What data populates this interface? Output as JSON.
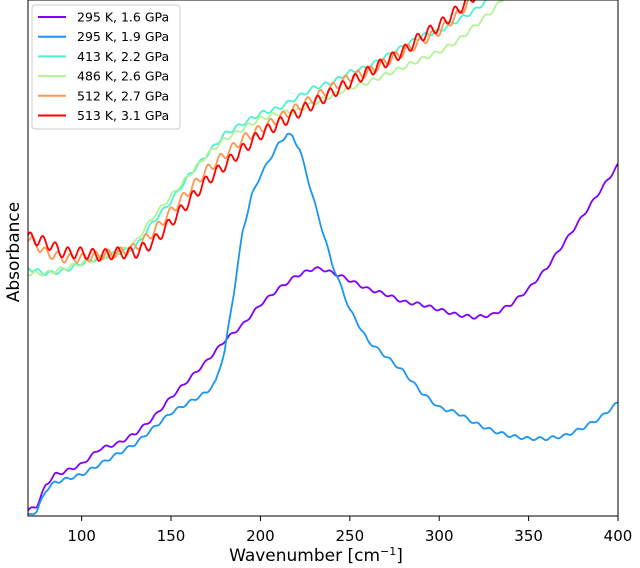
{
  "chart_data": {
    "type": "line",
    "title": "",
    "xlabel": "Wavenumber [cm",
    "xlabel_sup": "−1",
    "xlabel_end": "]",
    "ylabel": "Absorbance",
    "xlim": [
      70,
      400
    ],
    "ylim": [
      0,
      1
    ],
    "y_tick_labels": false,
    "x_ticks": [
      100,
      150,
      200,
      250,
      300,
      350,
      400
    ],
    "grid": false,
    "legend_position": "top-left",
    "series": [
      {
        "name": "295 K, 1.6 GPa",
        "color": "#8000ff",
        "wiggle": 0.003,
        "points": [
          [
            70,
            0.01
          ],
          [
            75,
            0.02
          ],
          [
            80,
            0.06
          ],
          [
            85,
            0.08
          ],
          [
            90,
            0.085
          ],
          [
            100,
            0.1
          ],
          [
            110,
            0.13
          ],
          [
            120,
            0.14
          ],
          [
            130,
            0.16
          ],
          [
            140,
            0.19
          ],
          [
            150,
            0.23
          ],
          [
            160,
            0.265
          ],
          [
            170,
            0.3
          ],
          [
            180,
            0.34
          ],
          [
            190,
            0.37
          ],
          [
            200,
            0.41
          ],
          [
            210,
            0.44
          ],
          [
            220,
            0.465
          ],
          [
            230,
            0.48
          ],
          [
            235,
            0.478
          ],
          [
            245,
            0.465
          ],
          [
            260,
            0.44
          ],
          [
            270,
            0.43
          ],
          [
            280,
            0.415
          ],
          [
            290,
            0.41
          ],
          [
            300,
            0.4
          ],
          [
            310,
            0.39
          ],
          [
            320,
            0.385
          ],
          [
            330,
            0.39
          ],
          [
            340,
            0.41
          ],
          [
            350,
            0.44
          ],
          [
            360,
            0.48
          ],
          [
            370,
            0.53
          ],
          [
            380,
            0.58
          ],
          [
            390,
            0.63
          ],
          [
            400,
            0.68
          ]
        ]
      },
      {
        "name": "295 K, 1.9 GPa",
        "color": "#1996f3",
        "wiggle": 0.003,
        "points": [
          [
            70,
            0.0
          ],
          [
            75,
            0.01
          ],
          [
            80,
            0.05
          ],
          [
            85,
            0.065
          ],
          [
            90,
            0.07
          ],
          [
            100,
            0.08
          ],
          [
            110,
            0.1
          ],
          [
            120,
            0.12
          ],
          [
            130,
            0.14
          ],
          [
            140,
            0.17
          ],
          [
            150,
            0.2
          ],
          [
            160,
            0.22
          ],
          [
            170,
            0.24
          ],
          [
            175,
            0.26
          ],
          [
            180,
            0.32
          ],
          [
            185,
            0.43
          ],
          [
            190,
            0.55
          ],
          [
            195,
            0.62
          ],
          [
            200,
            0.66
          ],
          [
            205,
            0.69
          ],
          [
            210,
            0.72
          ],
          [
            215,
            0.74
          ],
          [
            218,
            0.735
          ],
          [
            222,
            0.71
          ],
          [
            230,
            0.61
          ],
          [
            240,
            0.49
          ],
          [
            250,
            0.4
          ],
          [
            260,
            0.34
          ],
          [
            270,
            0.31
          ],
          [
            280,
            0.28
          ],
          [
            290,
            0.24
          ],
          [
            300,
            0.21
          ],
          [
            310,
            0.2
          ],
          [
            320,
            0.18
          ],
          [
            330,
            0.165
          ],
          [
            340,
            0.155
          ],
          [
            350,
            0.15
          ],
          [
            360,
            0.15
          ],
          [
            370,
            0.155
          ],
          [
            380,
            0.17
          ],
          [
            390,
            0.19
          ],
          [
            400,
            0.22
          ]
        ]
      },
      {
        "name": "413 K, 2.2 GPa",
        "color": "#4cf2ce",
        "wiggle": 0.004,
        "points": [
          [
            70,
            0.48
          ],
          [
            80,
            0.47
          ],
          [
            90,
            0.475
          ],
          [
            100,
            0.49
          ],
          [
            110,
            0.5
          ],
          [
            120,
            0.51
          ],
          [
            130,
            0.52
          ],
          [
            140,
            0.57
          ],
          [
            150,
            0.61
          ],
          [
            160,
            0.66
          ],
          [
            170,
            0.7
          ],
          [
            180,
            0.74
          ],
          [
            190,
            0.76
          ],
          [
            200,
            0.78
          ],
          [
            210,
            0.79
          ],
          [
            220,
            0.81
          ],
          [
            230,
            0.83
          ],
          [
            240,
            0.84
          ],
          [
            250,
            0.86
          ],
          [
            260,
            0.87
          ],
          [
            270,
            0.89
          ],
          [
            280,
            0.91
          ],
          [
            290,
            0.93
          ],
          [
            300,
            0.94
          ],
          [
            310,
            0.96
          ],
          [
            320,
            0.98
          ],
          [
            330,
            1.01
          ]
        ]
      },
      {
        "name": "486 K, 2.6 GPa",
        "color": "#b2f396",
        "wiggle": 0.004,
        "points": [
          [
            70,
            0.47
          ],
          [
            80,
            0.47
          ],
          [
            90,
            0.48
          ],
          [
            100,
            0.49
          ],
          [
            110,
            0.5
          ],
          [
            120,
            0.51
          ],
          [
            130,
            0.53
          ],
          [
            140,
            0.58
          ],
          [
            150,
            0.62
          ],
          [
            160,
            0.66
          ],
          [
            170,
            0.7
          ],
          [
            180,
            0.73
          ],
          [
            190,
            0.75
          ],
          [
            200,
            0.77
          ],
          [
            210,
            0.78
          ],
          [
            220,
            0.785
          ],
          [
            230,
            0.8
          ],
          [
            240,
            0.815
          ],
          [
            250,
            0.83
          ],
          [
            260,
            0.84
          ],
          [
            270,
            0.855
          ],
          [
            280,
            0.87
          ],
          [
            290,
            0.885
          ],
          [
            300,
            0.9
          ],
          [
            310,
            0.92
          ],
          [
            320,
            0.95
          ],
          [
            330,
            0.98
          ],
          [
            340,
            1.02
          ]
        ]
      },
      {
        "name": "512 K, 2.7 GPa",
        "color": "#ff964f",
        "wiggle": 0.009,
        "points": [
          [
            70,
            0.54
          ],
          [
            80,
            0.51
          ],
          [
            90,
            0.5
          ],
          [
            100,
            0.5
          ],
          [
            110,
            0.505
          ],
          [
            120,
            0.51
          ],
          [
            130,
            0.52
          ],
          [
            140,
            0.55
          ],
          [
            150,
            0.59
          ],
          [
            160,
            0.63
          ],
          [
            170,
            0.67
          ],
          [
            180,
            0.7
          ],
          [
            190,
            0.73
          ],
          [
            200,
            0.75
          ],
          [
            210,
            0.77
          ],
          [
            220,
            0.79
          ],
          [
            230,
            0.81
          ],
          [
            240,
            0.83
          ],
          [
            250,
            0.85
          ],
          [
            260,
            0.86
          ],
          [
            270,
            0.88
          ],
          [
            280,
            0.9
          ],
          [
            290,
            0.92
          ],
          [
            300,
            0.94
          ],
          [
            310,
            0.97
          ],
          [
            320,
            1.01
          ]
        ]
      },
      {
        "name": "513 K, 3.1 GPa",
        "color": "#ff0000",
        "wiggle": 0.011,
        "points": [
          [
            70,
            0.54
          ],
          [
            80,
            0.53
          ],
          [
            90,
            0.51
          ],
          [
            100,
            0.51
          ],
          [
            110,
            0.505
          ],
          [
            120,
            0.51
          ],
          [
            130,
            0.51
          ],
          [
            140,
            0.53
          ],
          [
            150,
            0.57
          ],
          [
            160,
            0.61
          ],
          [
            170,
            0.65
          ],
          [
            180,
            0.68
          ],
          [
            190,
            0.71
          ],
          [
            200,
            0.74
          ],
          [
            210,
            0.76
          ],
          [
            220,
            0.78
          ],
          [
            230,
            0.8
          ],
          [
            240,
            0.82
          ],
          [
            250,
            0.84
          ],
          [
            260,
            0.86
          ],
          [
            270,
            0.88
          ],
          [
            280,
            0.9
          ],
          [
            290,
            0.93
          ],
          [
            300,
            0.95
          ],
          [
            310,
            0.98
          ],
          [
            320,
            1.01
          ]
        ]
      }
    ]
  }
}
